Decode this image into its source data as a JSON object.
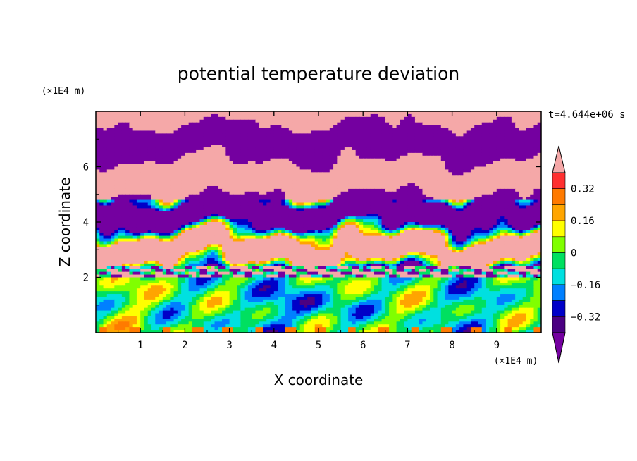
{
  "chart_data": {
    "type": "heatmap",
    "title": "potential temperature deviation",
    "xlabel": "X coordinate",
    "ylabel": "Z coordinate",
    "x_unit": "(×1E4 m)",
    "y_unit": "(×1E4 m)",
    "time_label": "t=4.644e+06 s",
    "xlim": [
      0,
      10
    ],
    "ylim": [
      0,
      8
    ],
    "x_ticks": [
      "1",
      "2",
      "3",
      "4",
      "5",
      "6",
      "7",
      "8",
      "9"
    ],
    "y_ticks": [
      "2",
      "4",
      "6"
    ],
    "colorbar": {
      "tick_labels": [
        "0.32",
        "0.16",
        "0",
        "−0.16",
        "−0.32"
      ],
      "tick_values": [
        0.32,
        0.16,
        0,
        -0.16,
        -0.32
      ],
      "levels_top_to_bottom": [
        ">0.4",
        "0.32..0.4",
        "0.24..0.32",
        "0.16..0.24",
        "0.08..0.16",
        "0..0.08",
        "-0.08..0",
        "-0.16..-0.08",
        "-0.24..-0.16",
        "-0.32..-0.24",
        "-0.4..-0.32",
        "<-0.4"
      ],
      "colors_top_to_bottom": [
        "#f5a8a8",
        "#ff3030",
        "#ff7a00",
        "#ffa500",
        "#ffff00",
        "#80ff00",
        "#00e060",
        "#00e0e0",
        "#0080ff",
        "#0000c8",
        "#4b0082",
        "#7400a0"
      ]
    },
    "field_description_bands": [
      {
        "z_range": [
          0,
          2
        ],
        "dominant_levels": [
          "0..0.08",
          "-0.16..-0.08",
          "-0.24..-0.16",
          "0.16..0.24"
        ]
      },
      {
        "z_range": [
          2,
          5.3
        ],
        "dominant_levels": [
          ">0.4",
          "<-0.4"
        ]
      },
      {
        "z_range": [
          5.3,
          8
        ],
        "dominant_levels": [
          ">0.4",
          "<-0.4"
        ]
      }
    ]
  }
}
